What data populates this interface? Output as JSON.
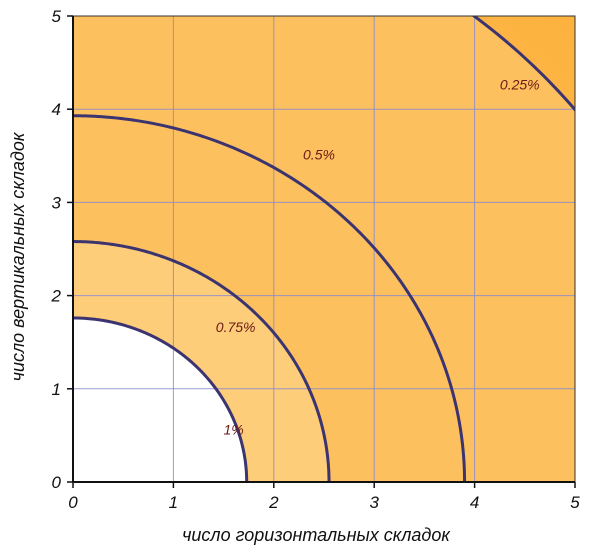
{
  "chart_data": {
    "type": "contour",
    "xlabel": "число горизонтальных складок",
    "ylabel": "число вертикальных складок",
    "xlim": [
      0,
      5
    ],
    "ylim": [
      0,
      5
    ],
    "x_ticks": [
      "0",
      "1",
      "2",
      "3",
      "4",
      "5"
    ],
    "y_ticks": [
      "0",
      "1",
      "2",
      "3",
      "4",
      "5"
    ],
    "grid": true,
    "colors": {
      "line": "#3b3470",
      "grid": "#8a8ad0",
      "label": "#6b1a14",
      "band_outside": "#ffffff",
      "band_0": "#fde3b3",
      "band_1": "#fdcd7a",
      "band_2": "#fdc05e",
      "band_3": "#fdb84a"
    },
    "contours": [
      {
        "label": "1%",
        "x_intercept": 1.73,
        "y_intercept": 1.76,
        "label_at": [
          1.6,
          0.55
        ]
      },
      {
        "label": "0.75%",
        "x_intercept": 2.55,
        "y_intercept": 2.58,
        "label_at": [
          1.62,
          1.65
        ]
      },
      {
        "label": "0.5%",
        "x_intercept": 3.9,
        "y_intercept": 3.93,
        "label_at": [
          2.45,
          3.5
        ]
      },
      {
        "label": "0.25%",
        "x_intercept": 6.4,
        "y_intercept": 6.4,
        "label_at": [
          4.45,
          4.25
        ]
      }
    ]
  }
}
